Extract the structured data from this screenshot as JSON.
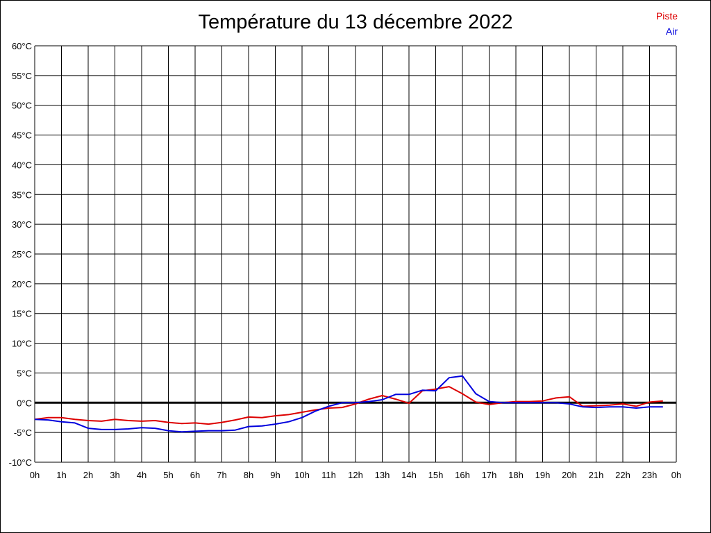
{
  "chart_data": {
    "type": "line",
    "title": "Température du 13 décembre 2022",
    "y_ticks": [
      "60°C",
      "55°C",
      "50°C",
      "45°C",
      "40°C",
      "35°C",
      "30°C",
      "25°C",
      "20°C",
      "15°C",
      "10°C",
      "5°C",
      "0°C",
      "-5°C",
      "-10°C"
    ],
    "x_ticks": [
      "0h",
      "1h",
      "2h",
      "3h",
      "4h",
      "5h",
      "6h",
      "7h",
      "8h",
      "9h",
      "10h",
      "11h",
      "12h",
      "13h",
      "14h",
      "15h",
      "16h",
      "17h",
      "18h",
      "19h",
      "20h",
      "21h",
      "22h",
      "23h",
      "0h"
    ],
    "ylim": [
      -10,
      60
    ],
    "xlim": [
      0,
      24
    ],
    "grid": true,
    "legend_position": "top-right",
    "series": [
      {
        "name": "Piste",
        "color": "#dd0000",
        "points": [
          [
            0,
            -2.8
          ],
          [
            0.5,
            -2.5
          ],
          [
            1,
            -2.5
          ],
          [
            1.5,
            -2.8
          ],
          [
            2,
            -3.0
          ],
          [
            2.5,
            -3.1
          ],
          [
            3,
            -2.8
          ],
          [
            3.5,
            -3.0
          ],
          [
            4,
            -3.1
          ],
          [
            4.5,
            -3.0
          ],
          [
            5,
            -3.3
          ],
          [
            5.5,
            -3.5
          ],
          [
            6,
            -3.4
          ],
          [
            6.5,
            -3.6
          ],
          [
            7,
            -3.3
          ],
          [
            7.5,
            -2.9
          ],
          [
            8,
            -2.4
          ],
          [
            8.5,
            -2.5
          ],
          [
            9,
            -2.2
          ],
          [
            9.5,
            -2.0
          ],
          [
            10,
            -1.6
          ],
          [
            10.5,
            -1.2
          ],
          [
            11,
            -0.9
          ],
          [
            11.5,
            -0.8
          ],
          [
            12,
            -0.2
          ],
          [
            12.5,
            0.6
          ],
          [
            13,
            1.2
          ],
          [
            13.5,
            0.6
          ],
          [
            14,
            -0.1
          ],
          [
            14.5,
            2.0
          ],
          [
            15,
            2.3
          ],
          [
            15.5,
            2.7
          ],
          [
            16,
            1.5
          ],
          [
            16.5,
            0.1
          ],
          [
            17,
            -0.3
          ],
          [
            17.5,
            0.0
          ],
          [
            18,
            0.2
          ],
          [
            18.5,
            0.2
          ],
          [
            19,
            0.3
          ],
          [
            19.5,
            0.8
          ],
          [
            20,
            1.0
          ],
          [
            20.5,
            -0.6
          ],
          [
            21,
            -0.5
          ],
          [
            21.5,
            -0.4
          ],
          [
            22,
            -0.2
          ],
          [
            22.5,
            -0.6
          ],
          [
            23,
            0.1
          ],
          [
            23.5,
            0.3
          ]
        ]
      },
      {
        "name": "Air",
        "color": "#0000dd",
        "points": [
          [
            0,
            -2.8
          ],
          [
            0.5,
            -2.9
          ],
          [
            1,
            -3.2
          ],
          [
            1.5,
            -3.4
          ],
          [
            2,
            -4.3
          ],
          [
            2.5,
            -4.5
          ],
          [
            3,
            -4.5
          ],
          [
            3.5,
            -4.4
          ],
          [
            4,
            -4.2
          ],
          [
            4.5,
            -4.3
          ],
          [
            5,
            -4.7
          ],
          [
            5.5,
            -4.9
          ],
          [
            6,
            -4.8
          ],
          [
            6.5,
            -4.7
          ],
          [
            7,
            -4.7
          ],
          [
            7.5,
            -4.6
          ],
          [
            8,
            -4.0
          ],
          [
            8.5,
            -3.9
          ],
          [
            9,
            -3.6
          ],
          [
            9.5,
            -3.2
          ],
          [
            10,
            -2.5
          ],
          [
            10.5,
            -1.4
          ],
          [
            11,
            -0.6
          ],
          [
            11.5,
            0.0
          ],
          [
            12,
            0.0
          ],
          [
            12.5,
            0.2
          ],
          [
            13,
            0.5
          ],
          [
            13.5,
            1.4
          ],
          [
            14,
            1.4
          ],
          [
            14.5,
            2.1
          ],
          [
            15,
            2.0
          ],
          [
            15.5,
            4.2
          ],
          [
            16,
            4.5
          ],
          [
            16.5,
            1.5
          ],
          [
            17,
            0.2
          ],
          [
            17.5,
            0.0
          ],
          [
            18,
            0.0
          ],
          [
            18.5,
            0.0
          ],
          [
            19,
            0.0
          ],
          [
            19.5,
            0.0
          ],
          [
            20,
            -0.2
          ],
          [
            20.5,
            -0.7
          ],
          [
            21,
            -0.8
          ],
          [
            21.5,
            -0.7
          ],
          [
            22,
            -0.7
          ],
          [
            22.5,
            -0.9
          ],
          [
            23,
            -0.7
          ],
          [
            23.5,
            -0.7
          ]
        ]
      }
    ]
  }
}
